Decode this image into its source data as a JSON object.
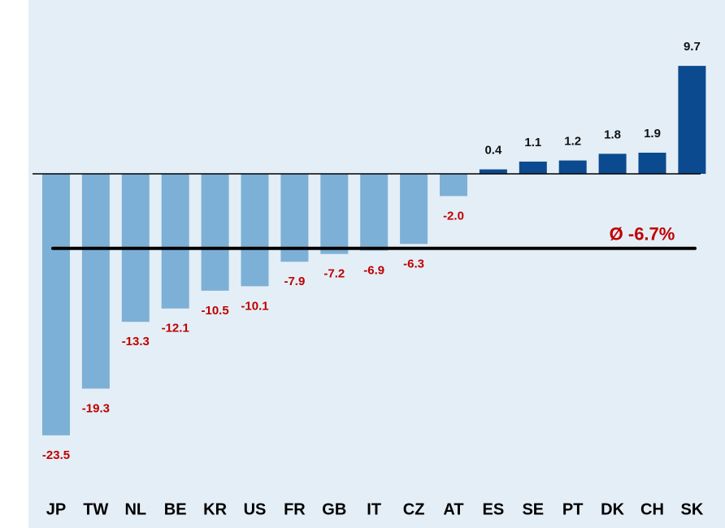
{
  "chart_data": {
    "type": "bar",
    "categories": [
      "JP",
      "TW",
      "NL",
      "BE",
      "KR",
      "US",
      "FR",
      "GB",
      "IT",
      "CZ",
      "AT",
      "ES",
      "SE",
      "PT",
      "DK",
      "CH",
      "SK"
    ],
    "values": [
      -23.5,
      -19.3,
      -13.3,
      -12.1,
      -10.5,
      -10.1,
      -7.9,
      -7.2,
      -6.9,
      -6.3,
      -2.0,
      0.4,
      1.1,
      1.2,
      1.8,
      1.9,
      9.7
    ],
    "value_labels": [
      "-23.5",
      "-19.3",
      "-13.3",
      "-12.1",
      "-10.5",
      "-10.1",
      "-7.9",
      "-7.2",
      "-6.9",
      "-6.3",
      "-2.0",
      "0.4",
      "1.1",
      "1.2",
      "1.8",
      "1.9",
      "9.7"
    ],
    "positive_color": "#0b4a8e",
    "negative_color": "#7db0d6",
    "positive_label_color": "#111111",
    "negative_label_color": "#c00000",
    "average": {
      "value": -6.7,
      "label": "Ø -6.7%"
    },
    "ylim": [
      -26,
      12
    ]
  }
}
